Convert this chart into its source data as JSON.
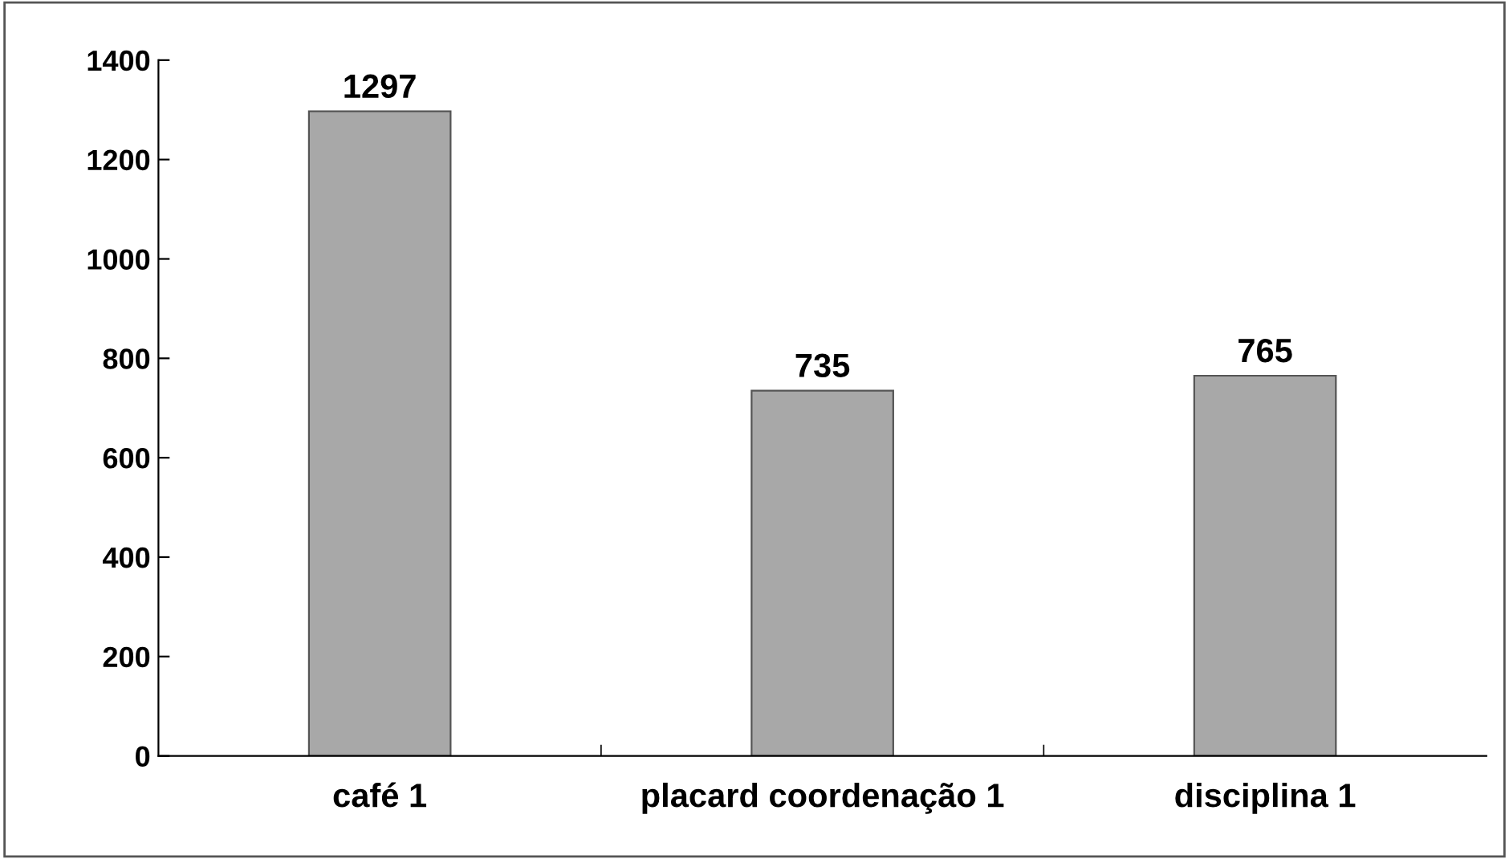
{
  "chart_data": {
    "type": "bar",
    "categories": [
      "café 1",
      "placard coordenação 1",
      "disciplina 1"
    ],
    "values": [
      1297,
      735,
      765
    ],
    "color": "#a8a8a8",
    "ylim": [
      0,
      1400
    ],
    "yticks": [
      0,
      200,
      400,
      600,
      800,
      1000,
      1200,
      1400
    ],
    "grid": false,
    "data_labels": true,
    "legend": false
  }
}
